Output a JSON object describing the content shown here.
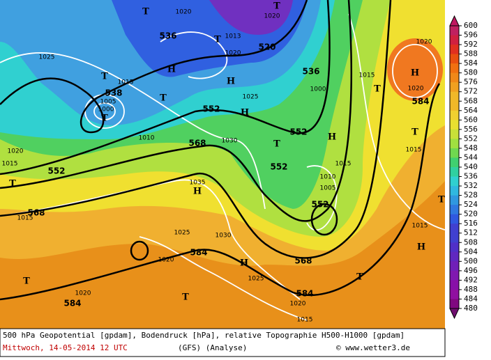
{
  "map": {
    "centers": [
      "T",
      "T",
      "T",
      "T",
      "H",
      "T",
      "T",
      "H",
      "H",
      "T",
      "H",
      "H",
      "T",
      "H",
      "T",
      "T",
      "H",
      "T",
      "T",
      "H",
      "T",
      "T"
    ],
    "height_labels": [
      "536",
      "520",
      "536",
      "538",
      "552",
      "552",
      "568",
      "552",
      "552",
      "552",
      "568",
      "584",
      "568",
      "584",
      "584",
      "584"
    ],
    "pressure_labels": [
      "1020",
      "1015",
      "1000",
      "1005",
      "1010",
      "1030",
      "1035",
      "1025",
      "1030",
      "1020",
      "1025",
      "1020",
      "1015",
      "1020",
      "1015",
      "1020",
      "1015",
      "1025",
      "1010",
      "1005",
      "1015",
      "1020",
      "1020",
      "1015",
      "1015",
      "1020",
      "1013",
      "1020",
      "1025",
      "1000",
      "1015"
    ]
  },
  "colorbar": {
    "levels": [
      600,
      596,
      592,
      588,
      584,
      580,
      576,
      572,
      568,
      564,
      560,
      556,
      552,
      548,
      544,
      540,
      536,
      532,
      528,
      524,
      520,
      516,
      512,
      508,
      504,
      500,
      496,
      492,
      488,
      484,
      480
    ]
  },
  "footer": {
    "description": "500 hPa Geopotential [gpdam], Bodendruck [hPa], relative Topographie H500-H1000 [gpdam]",
    "date": "Mittwoch, 14-05-2014  12 UTC",
    "model": "(GFS)  (Analyse)",
    "source": "© www.wetter3.de"
  }
}
